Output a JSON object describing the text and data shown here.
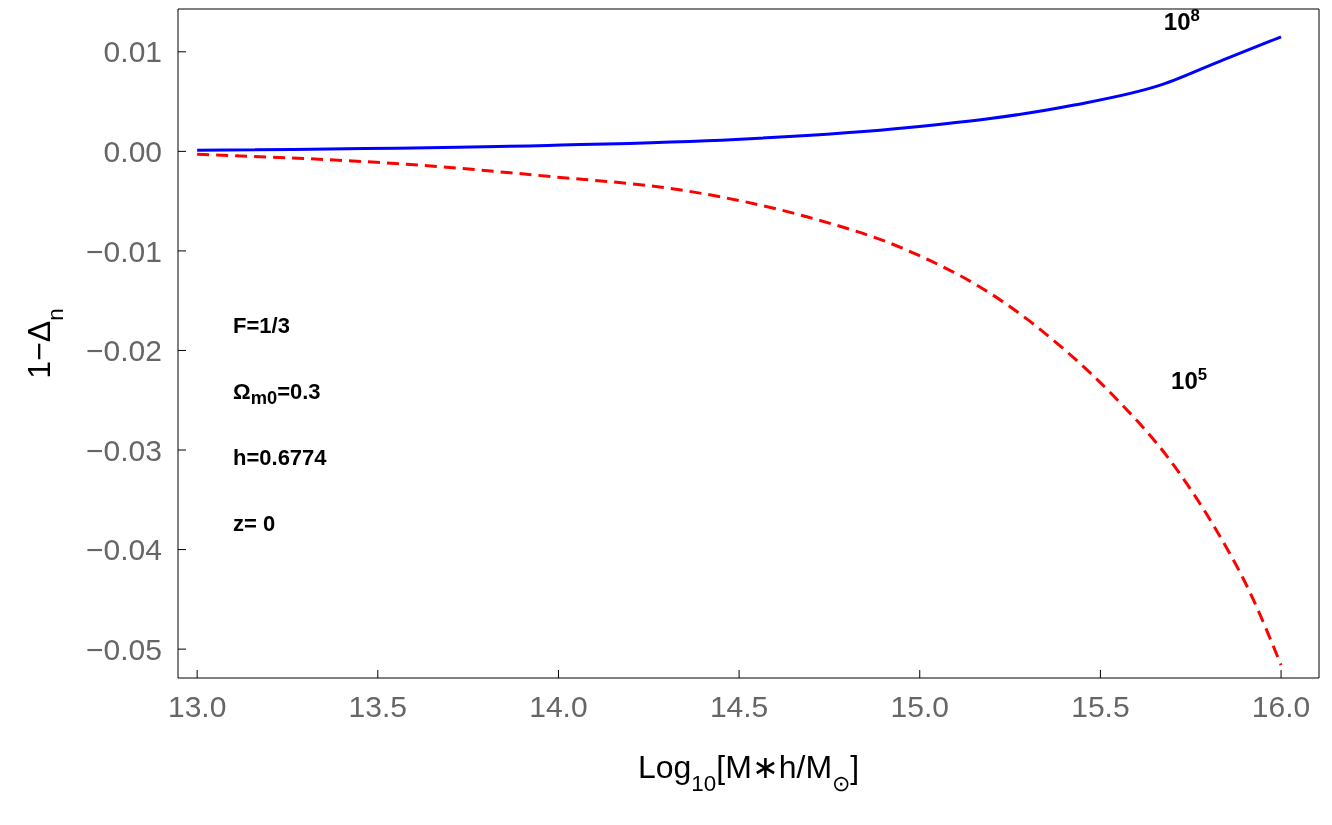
{
  "chart_data": {
    "type": "line",
    "xlabel": "Log$_{10}$[M∗h/M$_{⊙}$]",
    "ylabel": "1−Δ$_{n}$",
    "xlim": [
      12.947,
      16.105
    ],
    "ylim": [
      -0.0529,
      0.0143
    ],
    "xticks": [
      {
        "value": 13,
        "label": "13.0"
      },
      {
        "value": 13.5,
        "label": "13.5"
      },
      {
        "value": 14,
        "label": "14.0"
      },
      {
        "value": 14.5,
        "label": "14.5"
      },
      {
        "value": 15,
        "label": "15.0"
      },
      {
        "value": 15.5,
        "label": "15.5"
      },
      {
        "value": 16,
        "label": "16.0"
      }
    ],
    "yticks": [
      {
        "value": 0.01,
        "label": "0.01"
      },
      {
        "value": 0,
        "label": "0.00"
      },
      {
        "value": -0.01,
        "label": "−0.01"
      },
      {
        "value": -0.02,
        "label": "−0.02"
      },
      {
        "value": -0.03,
        "label": "−0.03"
      },
      {
        "value": -0.04,
        "label": "−0.04"
      },
      {
        "value": -0.05,
        "label": "−0.05"
      }
    ],
    "grid": false,
    "legend": false,
    "marker": "none",
    "series": [
      {
        "name": "10$^{8}$",
        "color": "#0000ff",
        "line_style": "solid",
        "x": [
          13.0,
          13.97,
          14.49,
          14.97,
          15.42,
          15.67,
          15.84,
          16.0
        ],
        "values": [
          0.0001,
          0.0006,
          0.0012,
          0.0024,
          0.0046,
          0.0067,
          0.0092,
          0.0115
        ]
      },
      {
        "name": "10$^{5}$",
        "color": "#ff0000",
        "line_style": "dashed",
        "x": [
          13.0,
          13.58,
          13.97,
          14.36,
          14.69,
          14.95,
          15.23,
          15.4,
          15.54,
          15.69,
          15.81,
          15.91,
          16.0
        ],
        "values": [
          -0.0003,
          -0.0013,
          -0.0025,
          -0.004,
          -0.0066,
          -0.0097,
          -0.0151,
          -0.0199,
          -0.0247,
          -0.0309,
          -0.0374,
          -0.044,
          -0.0516
        ]
      }
    ],
    "annotations": [
      "F=1/3",
      "Ω$_{m0}$=0.3",
      "h=0.6774",
      "z= 0"
    ]
  }
}
